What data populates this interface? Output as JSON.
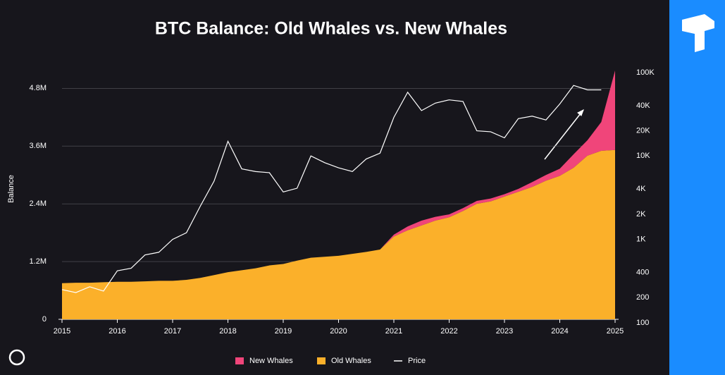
{
  "chart_data": {
    "type": "stacked-area-line",
    "title": "BTC Balance: Old Whales vs. New Whales",
    "ylabel": "Balance",
    "x": [
      2015,
      2015.25,
      2015.5,
      2015.75,
      2016,
      2016.25,
      2016.5,
      2016.75,
      2017,
      2017.25,
      2017.5,
      2017.75,
      2018,
      2018.25,
      2018.5,
      2018.75,
      2019,
      2019.25,
      2019.5,
      2019.75,
      2020,
      2020.25,
      2020.5,
      2020.75,
      2021,
      2021.25,
      2021.5,
      2021.75,
      2022,
      2022.25,
      2022.5,
      2022.75,
      2023,
      2023.25,
      2023.5,
      2023.75,
      2024,
      2024.25,
      2024.5,
      2024.75,
      2025
    ],
    "series": [
      {
        "name": "New Whales",
        "color": "#f0457a",
        "stack": true,
        "values": [
          0,
          0,
          0,
          0,
          0,
          0,
          0,
          0,
          0,
          0,
          0,
          0,
          0,
          0,
          0,
          0,
          0,
          0,
          0,
          0,
          0,
          0,
          0,
          0,
          40000,
          80000,
          100000,
          80000,
          60000,
          60000,
          60000,
          60000,
          50000,
          60000,
          100000,
          120000,
          150000,
          280000,
          320000,
          600000,
          1650000
        ]
      },
      {
        "name": "Old Whales",
        "color": "#fbb02a",
        "stack": true,
        "values": [
          750000,
          760000,
          760000,
          770000,
          780000,
          780000,
          790000,
          800000,
          800000,
          820000,
          860000,
          920000,
          980000,
          1020000,
          1060000,
          1120000,
          1150000,
          1220000,
          1280000,
          1300000,
          1320000,
          1360000,
          1400000,
          1450000,
          1720000,
          1850000,
          1950000,
          2050000,
          2120000,
          2250000,
          2400000,
          2450000,
          2550000,
          2650000,
          2750000,
          2880000,
          2980000,
          3150000,
          3400000,
          3500000,
          3520000
        ]
      },
      {
        "name": "Price",
        "color": "#ffffff",
        "axis": "y2",
        "values": [
          250,
          230,
          270,
          240,
          420,
          450,
          650,
          700,
          1000,
          1200,
          2500,
          5000,
          15000,
          7000,
          6500,
          6300,
          3700,
          4100,
          10000,
          8300,
          7200,
          6500,
          9200,
          10800,
          29000,
          58000,
          35000,
          43000,
          47000,
          45000,
          20000,
          19500,
          16500,
          28000,
          30000,
          27000,
          42000,
          70000,
          62000,
          62000,
          null
        ]
      }
    ],
    "xlim": [
      2015,
      2025
    ],
    "xticks": [
      2015,
      2016,
      2017,
      2018,
      2019,
      2020,
      2021,
      2022,
      2023,
      2024,
      2025
    ],
    "ylim": [
      0,
      5200000
    ],
    "yticks": [
      0,
      {
        "value": 1200000,
        "label": "1.2M"
      },
      {
        "value": 2400000,
        "label": "2.4M"
      },
      {
        "value": 3600000,
        "label": "3.6M"
      },
      {
        "value": 4800000,
        "label": "4.8M"
      }
    ],
    "y2lim": [
      110,
      110000
    ],
    "y2log": true,
    "y2ticks": [
      100,
      200,
      400,
      {
        "value": 1000,
        "label": "1K"
      },
      {
        "value": 2000,
        "label": "2K"
      },
      {
        "value": 4000,
        "label": "4K"
      },
      {
        "value": 10000,
        "label": "10K"
      },
      {
        "value": 20000,
        "label": "20K"
      },
      {
        "value": 40000,
        "label": "40K"
      },
      {
        "value": 100000,
        "label": "100K"
      }
    ],
    "grid": true,
    "legend": "bottom"
  }
}
